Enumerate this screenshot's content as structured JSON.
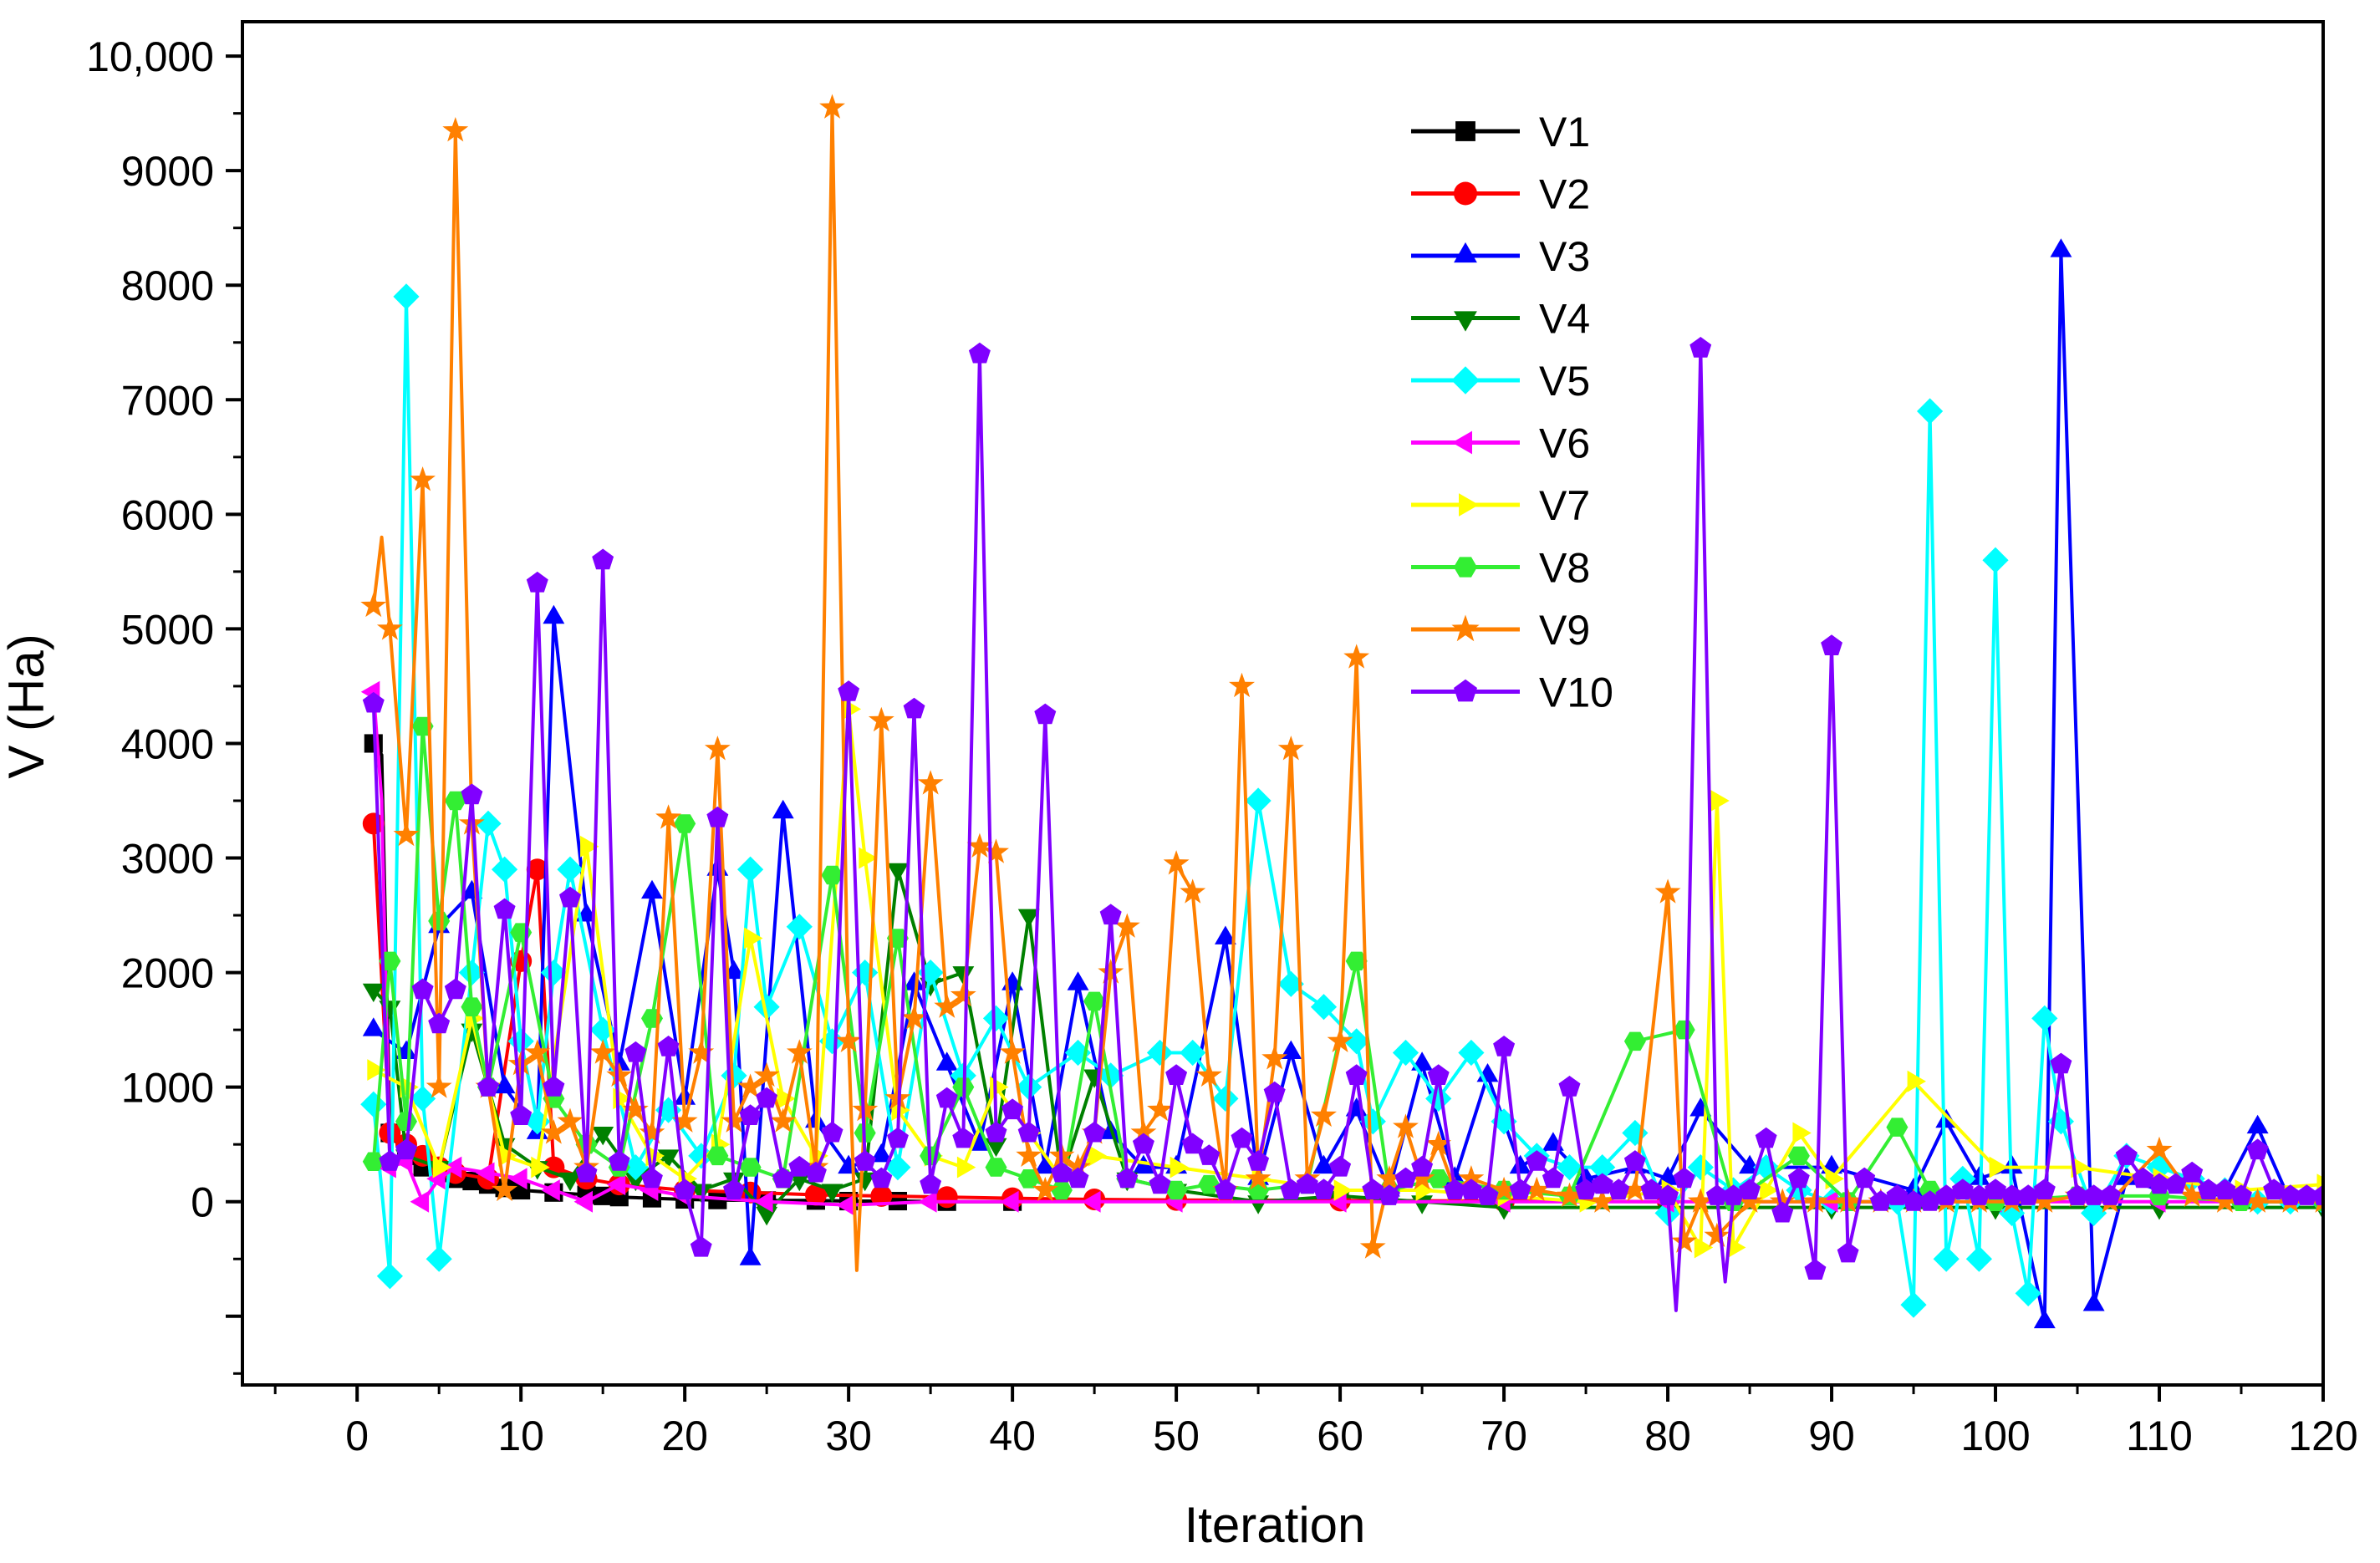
{
  "chart_data": {
    "type": "line",
    "title": "",
    "xlabel": "Iteration",
    "ylabel": "V (Ha)",
    "xlim": [
      -7,
      120
    ],
    "ylim": [
      -1600,
      10300
    ],
    "xticks": [
      0,
      10,
      20,
      30,
      40,
      50,
      60,
      70,
      80,
      90,
      100,
      110,
      120
    ],
    "xtick_labels": [
      "0",
      "10",
      "20",
      "30",
      "40",
      "50",
      "60",
      "70",
      "80",
      "90",
      "100",
      "110",
      "120"
    ],
    "yticks": [
      -1000,
      0,
      1000,
      2000,
      3000,
      4000,
      5000,
      6000,
      7000,
      8000,
      9000,
      10000
    ],
    "ytick_labels": [
      "",
      "0",
      "1000",
      "2000",
      "3000",
      "4000",
      "5000",
      "6000",
      "7000",
      "8000",
      "9000",
      "10,000"
    ],
    "grid": false,
    "legend_position": "top-right",
    "series": [
      {
        "name": "V1",
        "color": "#000000",
        "marker": "square",
        "x": [
          1,
          1.5,
          2,
          3,
          4,
          5,
          6,
          7,
          8,
          9,
          10,
          12,
          14,
          15,
          16,
          18,
          20,
          22,
          25,
          28,
          30,
          33,
          36,
          40
        ],
        "y": [
          4000,
          3900,
          600,
          400,
          300,
          250,
          200,
          180,
          150,
          120,
          100,
          80,
          60,
          50,
          40,
          30,
          20,
          15,
          10,
          10,
          5,
          5,
          0,
          0
        ]
      },
      {
        "name": "V2",
        "color": "#ff0000",
        "marker": "circle",
        "x": [
          1,
          2,
          3,
          4,
          5,
          6,
          8,
          10,
          11,
          12,
          14,
          16,
          20,
          24,
          28,
          32,
          36,
          40,
          45,
          50,
          60,
          70,
          80
        ],
        "y": [
          3300,
          600,
          500,
          400,
          300,
          250,
          200,
          2100,
          2900,
          300,
          200,
          150,
          100,
          80,
          60,
          50,
          40,
          30,
          20,
          15,
          10,
          5,
          0
        ]
      },
      {
        "name": "V3",
        "color": "#0000ff",
        "marker": "triangle-up",
        "x": [
          1,
          3,
          5,
          7,
          9,
          11,
          12,
          14,
          16,
          18,
          20,
          22,
          23,
          24,
          26,
          28,
          30,
          32,
          34,
          36,
          38,
          40,
          42,
          44,
          46,
          48,
          50,
          53,
          55,
          57,
          59,
          61,
          63,
          65,
          67,
          69,
          71,
          73,
          75,
          78,
          80,
          82,
          85,
          90,
          95,
          97,
          99,
          101,
          103,
          104,
          106,
          108,
          110,
          112,
          114,
          116,
          118,
          120
        ],
        "y": [
          1500,
          1300,
          2400,
          2700,
          1000,
          600,
          5100,
          2500,
          1200,
          2700,
          900,
          2900,
          2000,
          -500,
          3400,
          700,
          300,
          400,
          1900,
          1200,
          500,
          1900,
          300,
          1900,
          600,
          300,
          300,
          2300,
          200,
          1300,
          300,
          800,
          100,
          1200,
          200,
          1100,
          300,
          500,
          200,
          300,
          200,
          800,
          300,
          300,
          100,
          700,
          200,
          300,
          -1050,
          8300,
          -900,
          200,
          100,
          200,
          100,
          650,
          0,
          0
        ]
      },
      {
        "name": "V4",
        "color": "#008000",
        "marker": "triangle-down",
        "x": [
          1,
          2,
          3,
          5,
          7,
          9,
          11,
          13,
          15,
          17,
          19,
          21,
          23,
          25,
          27,
          29,
          31,
          33,
          35,
          37,
          39,
          41,
          43,
          45,
          47,
          50,
          55,
          60,
          65,
          70,
          80,
          90,
          100,
          110,
          120
        ],
        "y": [
          1850,
          1700,
          400,
          300,
          1500,
          500,
          300,
          200,
          600,
          200,
          400,
          100,
          200,
          -100,
          200,
          100,
          200,
          2900,
          1900,
          2000,
          500,
          2500,
          200,
          1100,
          200,
          100,
          0,
          50,
          0,
          -50,
          -50,
          -50,
          -50,
          -50,
          -50
        ]
      },
      {
        "name": "V5",
        "color": "#00ffff",
        "marker": "diamond",
        "x": [
          1,
          2,
          3,
          4,
          5,
          7,
          8,
          9,
          10,
          11,
          12,
          13,
          15,
          17,
          19,
          21,
          23,
          24,
          25,
          27,
          29,
          31,
          33,
          35,
          37,
          39,
          41,
          44,
          46,
          49,
          51,
          53,
          55,
          57,
          59,
          61,
          62,
          64,
          66,
          68,
          70,
          72,
          74,
          76,
          78,
          80,
          82,
          84,
          86,
          88,
          90,
          94,
          95,
          96,
          97,
          98,
          99,
          100,
          101,
          102,
          103,
          104,
          106,
          108,
          110,
          112,
          114,
          116,
          118,
          120
        ],
        "y": [
          850,
          -650,
          7900,
          900,
          -500,
          2000,
          3300,
          2900,
          1400,
          700,
          2000,
          2900,
          1500,
          300,
          800,
          400,
          1100,
          2900,
          1700,
          2400,
          1400,
          2000,
          300,
          2000,
          1100,
          1600,
          1000,
          1300,
          1100,
          1300,
          1300,
          900,
          3500,
          1900,
          1700,
          1400,
          700,
          1300,
          900,
          1300,
          700,
          400,
          300,
          300,
          600,
          -100,
          300,
          100,
          300,
          100,
          0,
          0,
          -900,
          6900,
          -500,
          200,
          -500,
          5600,
          -100,
          -800,
          1600,
          700,
          -100,
          400,
          300,
          200,
          100,
          0,
          0,
          0
        ]
      },
      {
        "name": "V6",
        "color": "#ff00ff",
        "marker": "triangle-left",
        "x": [
          1,
          1.5,
          2,
          3,
          4,
          5,
          6,
          8,
          10,
          12,
          14,
          16,
          18,
          20,
          25,
          30,
          35,
          40,
          45,
          50,
          60,
          70,
          80,
          90,
          100,
          110,
          120
        ],
        "y": [
          4450,
          3500,
          300,
          350,
          0,
          200,
          300,
          250,
          200,
          100,
          0,
          150,
          100,
          50,
          0,
          -30,
          0,
          0,
          0,
          0,
          0,
          0,
          0,
          0,
          0,
          0,
          0
        ]
      },
      {
        "name": "V7",
        "color": "#ffff00",
        "marker": "triangle-right",
        "x": [
          1,
          3,
          5,
          7,
          9,
          11,
          14,
          16,
          18,
          20,
          22,
          24,
          26,
          28,
          30,
          31,
          33,
          35,
          37,
          39,
          41,
          43,
          45,
          50,
          55,
          60,
          65,
          70,
          75,
          80,
          82,
          83,
          84,
          86,
          88,
          90,
          95,
          100,
          105,
          110,
          115,
          120
        ],
        "y": [
          1150,
          1000,
          300,
          1600,
          400,
          300,
          3100,
          900,
          400,
          200,
          500,
          2300,
          900,
          400,
          4300,
          3000,
          800,
          400,
          300,
          1000,
          600,
          200,
          400,
          300,
          200,
          100,
          100,
          50,
          0,
          100,
          -400,
          3500,
          -400,
          100,
          600,
          200,
          1050,
          300,
          300,
          200,
          100,
          150
        ]
      },
      {
        "name": "V8",
        "color": "#33ee33",
        "marker": "hexagon",
        "x": [
          1,
          2,
          3,
          4,
          5,
          6,
          7,
          8,
          10,
          12,
          14,
          16,
          18,
          20,
          22,
          24,
          26,
          29,
          31,
          33,
          35,
          37,
          39,
          41,
          43,
          45,
          47,
          50,
          52,
          55,
          58,
          61,
          63,
          66,
          70,
          74,
          78,
          81,
          84,
          88,
          91,
          94,
          96,
          100,
          105,
          110,
          115,
          120
        ],
        "y": [
          350,
          2100,
          700,
          4150,
          2450,
          3500,
          1700,
          1000,
          2350,
          900,
          500,
          300,
          1600,
          3300,
          400,
          300,
          200,
          2850,
          600,
          2300,
          400,
          1000,
          300,
          200,
          100,
          1750,
          200,
          100,
          150,
          100,
          150,
          2100,
          100,
          200,
          100,
          50,
          1400,
          1500,
          0,
          400,
          0,
          650,
          100,
          0,
          50,
          50,
          0,
          0
        ]
      },
      {
        "name": "V9",
        "color": "#ff8000",
        "marker": "star",
        "x": [
          1,
          1.5,
          2,
          3,
          4,
          5,
          6,
          7,
          8,
          9,
          10,
          11,
          12,
          13,
          14,
          15,
          16,
          17,
          18,
          19,
          20,
          21,
          22,
          23,
          24,
          25,
          26,
          27,
          28,
          29,
          30,
          30.5,
          31,
          32,
          33,
          34,
          35,
          36,
          37,
          38,
          39,
          40,
          41,
          42,
          43,
          44,
          45,
          46,
          47,
          48,
          49,
          50,
          51,
          52,
          53,
          54,
          55,
          56,
          57,
          58,
          59,
          60,
          61,
          62,
          63,
          64,
          65,
          66,
          67,
          68,
          70,
          72,
          74,
          76,
          78,
          80,
          81,
          82,
          83,
          85,
          87,
          89,
          91,
          93,
          95,
          97,
          99,
          101,
          103,
          105,
          107,
          110,
          112,
          114,
          116,
          118,
          120
        ],
        "y": [
          5200,
          5800,
          5000,
          3200,
          6300,
          1000,
          9350,
          3300,
          1000,
          100,
          1200,
          1300,
          600,
          700,
          300,
          1300,
          1100,
          800,
          600,
          3350,
          700,
          1300,
          3950,
          700,
          1000,
          1100,
          700,
          1300,
          300,
          9550,
          1400,
          -600,
          800,
          4200,
          900,
          1600,
          3650,
          1700,
          1800,
          3100,
          3050,
          1300,
          400,
          100,
          400,
          300,
          600,
          2000,
          2400,
          600,
          800,
          2950,
          2700,
          1100,
          100,
          4500,
          200,
          1250,
          3950,
          200,
          750,
          1400,
          4750,
          -400,
          200,
          650,
          200,
          500,
          100,
          200,
          100,
          100,
          50,
          0,
          100,
          2700,
          -350,
          0,
          -300,
          0,
          0,
          0,
          0,
          0,
          0,
          0,
          0,
          0,
          0,
          50,
          0,
          450,
          50,
          0,
          0,
          0,
          0
        ]
      },
      {
        "name": "V10",
        "color": "#8000ff",
        "marker": "pentagon",
        "x": [
          1,
          2,
          3,
          4,
          5,
          6,
          7,
          8,
          9,
          10,
          11,
          12,
          13,
          14,
          15,
          16,
          17,
          18,
          19,
          20,
          21,
          22,
          23,
          24,
          25,
          26,
          27,
          28,
          29,
          30,
          31,
          32,
          33,
          34,
          35,
          36,
          37,
          38,
          39,
          40,
          41,
          42,
          43,
          44,
          45,
          46,
          47,
          48,
          49,
          50,
          51,
          52,
          53,
          54,
          55,
          56,
          57,
          58,
          59,
          60,
          61,
          62,
          63,
          64,
          65,
          66,
          67,
          68,
          69,
          70,
          71,
          72,
          73,
          74,
          75,
          76,
          77,
          78,
          79,
          80,
          80.5,
          81,
          82,
          83,
          83.5,
          84,
          85,
          86,
          87,
          88,
          89,
          90,
          91,
          92,
          93,
          94,
          95,
          96,
          97,
          98,
          99,
          100,
          101,
          102,
          103,
          104,
          105,
          106,
          107,
          108,
          109,
          110,
          111,
          112,
          113,
          114,
          115,
          116,
          117,
          118,
          119,
          120
        ],
        "y": [
          4350,
          350,
          450,
          1850,
          1550,
          1850,
          3550,
          1000,
          2550,
          750,
          5400,
          1000,
          2650,
          250,
          5600,
          350,
          1300,
          200,
          1350,
          100,
          -400,
          3350,
          100,
          750,
          900,
          200,
          300,
          250,
          600,
          4450,
          350,
          200,
          550,
          4300,
          150,
          900,
          550,
          7400,
          600,
          800,
          600,
          4250,
          250,
          200,
          600,
          2500,
          200,
          500,
          150,
          1100,
          500,
          400,
          100,
          550,
          350,
          950,
          100,
          150,
          100,
          300,
          1100,
          100,
          50,
          200,
          300,
          1100,
          100,
          100,
          50,
          1350,
          100,
          350,
          200,
          1000,
          100,
          150,
          100,
          350,
          100,
          50,
          -950,
          200,
          7450,
          50,
          -700,
          50,
          100,
          550,
          -100,
          200,
          -600,
          4850,
          -450,
          200,
          0,
          50,
          0,
          0,
          50,
          100,
          50,
          100,
          50,
          50,
          100,
          1200,
          50,
          50,
          50,
          400,
          200,
          150,
          150,
          250,
          100,
          100,
          50,
          450,
          100,
          50,
          50,
          50
        ]
      }
    ]
  }
}
